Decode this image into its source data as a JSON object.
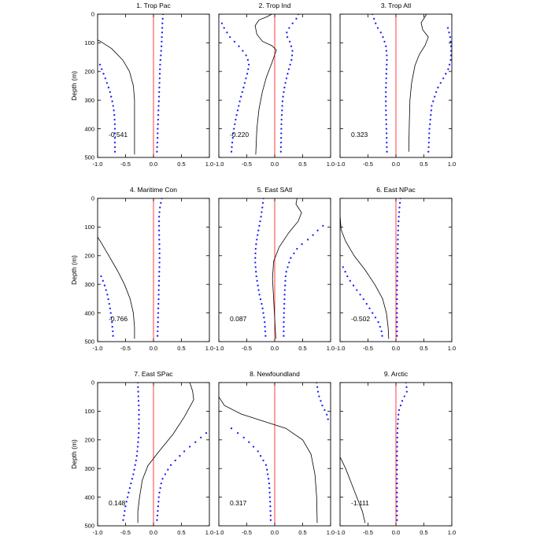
{
  "colors": {
    "profile": "#000000",
    "bound": "#1a1aff",
    "zero": "#ff2a2a",
    "frame": "#000000"
  },
  "ylabel": "Depth (m)",
  "chart_data": [
    {
      "type": "line",
      "title": "1. Trop Pac",
      "xlabel": "",
      "ylabel": "Depth (m)",
      "xlim": [
        -1,
        1
      ],
      "ylim": [
        500,
        0
      ],
      "xticks": [
        "-1.0",
        "-0.5",
        "0.0",
        "0.5",
        "1.0"
      ],
      "yticks": [
        "0",
        "100",
        "200",
        "300",
        "400",
        "500"
      ],
      "annotation": "-0.541",
      "series": [
        {
          "kind": "solid",
          "x": [
            -1.05,
            -0.95,
            -0.75,
            -0.55,
            -0.43,
            -0.36,
            -0.34,
            -0.34,
            -0.34,
            -0.34
          ],
          "y": [
            85,
            95,
            120,
            160,
            200,
            250,
            300,
            350,
            420,
            490
          ]
        },
        {
          "kind": "dotted",
          "x": [
            0.17,
            0.16,
            0.15,
            0.14,
            0.12,
            0.11,
            0.1,
            0.09,
            0.08,
            0.07,
            0.06
          ],
          "y": [
            0,
            30,
            80,
            120,
            170,
            220,
            280,
            330,
            380,
            440,
            490
          ]
        },
        {
          "kind": "dotted",
          "x": [
            -0.98,
            -0.92,
            -0.85,
            -0.78,
            -0.73,
            -0.7,
            -0.69,
            -0.69,
            -0.69
          ],
          "y": [
            165,
            195,
            230,
            270,
            310,
            350,
            390,
            430,
            490
          ]
        }
      ]
    },
    {
      "type": "line",
      "title": "2. Trop Ind",
      "xlabel": "",
      "ylabel": "",
      "xlim": [
        -1,
        1
      ],
      "ylim": [
        500,
        0
      ],
      "xticks": [
        "-1.0",
        "-0.5",
        "0.0",
        "0.5",
        "1.0"
      ],
      "yticks": [
        "0",
        "100",
        "200",
        "300",
        "400",
        "500"
      ],
      "annotation": "-0.220",
      "series": [
        {
          "kind": "solid",
          "x": [
            -0.05,
            -0.15,
            -0.28,
            -0.35,
            -0.32,
            -0.22,
            -0.05,
            0.03,
            -0.05,
            -0.15,
            -0.22,
            -0.28,
            -0.32,
            -0.34
          ],
          "y": [
            0,
            10,
            20,
            40,
            70,
            95,
            110,
            125,
            170,
            220,
            270,
            330,
            400,
            490
          ]
        },
        {
          "kind": "dotted",
          "x": [
            -0.95,
            -0.9,
            -0.8,
            -0.65,
            -0.52,
            -0.46,
            -0.48,
            -0.55,
            -0.62,
            -0.68,
            -0.74,
            -0.78
          ],
          "y": [
            30,
            50,
            80,
            110,
            140,
            170,
            200,
            250,
            300,
            350,
            410,
            490
          ]
        },
        {
          "kind": "dotted",
          "x": [
            0.42,
            0.38,
            0.28,
            0.2,
            0.28,
            0.32,
            0.3,
            0.24,
            0.18,
            0.14,
            0.12,
            0.11
          ],
          "y": [
            0,
            20,
            40,
            70,
            100,
            130,
            160,
            200,
            250,
            300,
            380,
            480
          ]
        }
      ]
    },
    {
      "type": "line",
      "title": "3. Trop Atl",
      "xlabel": "",
      "ylabel": "",
      "xlim": [
        -1,
        1
      ],
      "ylim": [
        500,
        0
      ],
      "xticks": [
        "-1.0",
        "-0.5",
        "0.0",
        "0.5",
        "1.0"
      ],
      "yticks": [
        "0",
        "100",
        "200",
        "300",
        "400",
        "500"
      ],
      "annotation": "0.323",
      "series": [
        {
          "kind": "solid",
          "x": [
            0.55,
            0.45,
            0.48,
            0.58,
            0.52,
            0.42,
            0.34,
            0.28,
            0.25,
            0.24,
            0.23
          ],
          "y": [
            0,
            30,
            55,
            80,
            110,
            140,
            180,
            240,
            300,
            380,
            480
          ]
        },
        {
          "kind": "dotted",
          "x": [
            -0.42,
            -0.35,
            -0.25,
            -0.18,
            -0.16,
            -0.17,
            -0.18,
            -0.18,
            -0.17,
            -0.16
          ],
          "y": [
            0,
            40,
            70,
            110,
            150,
            200,
            260,
            330,
            400,
            490
          ]
        },
        {
          "kind": "dotted",
          "x": [
            0.92,
            0.97,
            0.99,
            0.98,
            0.94,
            0.86,
            0.74,
            0.64,
            0.6,
            0.58
          ],
          "y": [
            40,
            80,
            120,
            160,
            190,
            220,
            260,
            320,
            400,
            490
          ]
        }
      ]
    },
    {
      "type": "line",
      "title": "4. Maritime Con",
      "xlabel": "",
      "ylabel": "Depth (m)",
      "xlim": [
        -1,
        1
      ],
      "ylim": [
        500,
        0
      ],
      "xticks": [
        "-1.0",
        "-0.5",
        "0.0",
        "0.5",
        "1.0"
      ],
      "yticks": [
        "0",
        "100",
        "200",
        "300",
        "400",
        "500"
      ],
      "annotation": "-0.766",
      "series": [
        {
          "kind": "solid",
          "x": [
            -1.05,
            -0.95,
            -0.8,
            -0.65,
            -0.52,
            -0.42,
            -0.36,
            -0.34,
            -0.34
          ],
          "y": [
            120,
            150,
            200,
            250,
            300,
            350,
            400,
            450,
            490
          ]
        },
        {
          "kind": "dotted",
          "x": [
            0.15,
            0.12,
            0.1,
            0.1,
            0.11,
            0.1,
            0.09,
            0.08,
            0.07
          ],
          "y": [
            0,
            25,
            60,
            120,
            200,
            280,
            360,
            430,
            490
          ]
        },
        {
          "kind": "dotted",
          "x": [
            -0.95,
            -0.88,
            -0.82,
            -0.78,
            -0.75,
            -0.73,
            -0.72
          ],
          "y": [
            265,
            300,
            340,
            380,
            420,
            460,
            490
          ]
        }
      ]
    },
    {
      "type": "line",
      "title": "5. East SAtl",
      "xlabel": "",
      "ylabel": "",
      "xlim": [
        -1,
        1
      ],
      "ylim": [
        500,
        0
      ],
      "xticks": [
        "-1.0",
        "-0.5",
        "0.0",
        "0.5",
        "1.0"
      ],
      "yticks": [
        "0",
        "100",
        "200",
        "300",
        "400",
        "500"
      ],
      "annotation": "0.087",
      "series": [
        {
          "kind": "solid",
          "x": [
            0.4,
            0.38,
            0.48,
            0.42,
            0.25,
            0.08,
            -0.02,
            -0.04,
            -0.02,
            0.0,
            0.02
          ],
          "y": [
            0,
            20,
            50,
            80,
            120,
            170,
            220,
            280,
            350,
            420,
            490
          ]
        },
        {
          "kind": "dotted",
          "x": [
            -0.2,
            -0.22,
            -0.25,
            -0.3,
            -0.34,
            -0.35,
            -0.33,
            -0.28,
            -0.22,
            -0.18,
            -0.16
          ],
          "y": [
            0,
            30,
            70,
            120,
            170,
            220,
            270,
            330,
            380,
            430,
            490
          ]
        },
        {
          "kind": "dotted",
          "x": [
            0.9,
            0.78,
            0.62,
            0.42,
            0.28,
            0.2,
            0.18,
            0.17,
            0.16,
            0.16
          ],
          "y": [
            90,
            110,
            140,
            170,
            210,
            260,
            320,
            380,
            440,
            490
          ]
        }
      ]
    },
    {
      "type": "line",
      "title": "6. East NPac",
      "xlabel": "",
      "ylabel": "",
      "xlim": [
        -1,
        1
      ],
      "ylim": [
        500,
        0
      ],
      "xticks": [
        "-1.0",
        "-0.5",
        "0.0",
        "0.5",
        "1.0"
      ],
      "yticks": [
        "0",
        "100",
        "200",
        "300",
        "400",
        "500"
      ],
      "annotation": "-0.502",
      "series": [
        {
          "kind": "solid",
          "x": [
            -1.0,
            -1.0,
            -0.98,
            -0.9,
            -0.75,
            -0.55,
            -0.38,
            -0.24,
            -0.17,
            -0.14,
            -0.13
          ],
          "y": [
            10,
            60,
            110,
            150,
            200,
            250,
            300,
            350,
            400,
            450,
            490
          ]
        },
        {
          "kind": "dotted",
          "x": [
            0.08,
            0.06,
            0.04,
            0.03,
            0.02,
            0.02
          ],
          "y": [
            0,
            40,
            100,
            200,
            320,
            490
          ]
        },
        {
          "kind": "dotted",
          "x": [
            -0.97,
            -0.85,
            -0.7,
            -0.55,
            -0.42,
            -0.32,
            -0.26,
            -0.24
          ],
          "y": [
            230,
            280,
            320,
            360,
            400,
            430,
            460,
            490
          ]
        }
      ]
    },
    {
      "type": "line",
      "title": "7. East SPac",
      "xlabel": "",
      "ylabel": "Depth (m)",
      "xlim": [
        -1,
        1
      ],
      "ylim": [
        500,
        0
      ],
      "xticks": [
        "-1.0",
        "-0.5",
        "0.0",
        "0.5",
        "1.0"
      ],
      "yticks": [
        "0",
        "100",
        "200",
        "300",
        "400",
        "500"
      ],
      "annotation": "0.148",
      "series": [
        {
          "kind": "solid",
          "x": [
            0.65,
            0.7,
            0.72,
            0.55,
            0.35,
            0.1,
            -0.1,
            -0.2,
            -0.25,
            -0.28,
            -0.28
          ],
          "y": [
            0,
            30,
            60,
            120,
            180,
            240,
            290,
            340,
            400,
            450,
            490
          ]
        },
        {
          "kind": "dotted",
          "x": [
            -0.28,
            -0.27,
            -0.26,
            -0.26,
            -0.27,
            -0.3,
            -0.36,
            -0.44,
            -0.5,
            -0.55
          ],
          "y": [
            0,
            50,
            100,
            150,
            200,
            260,
            320,
            380,
            430,
            490
          ]
        },
        {
          "kind": "dotted",
          "x": [
            0.98,
            0.8,
            0.55,
            0.3,
            0.15,
            0.1,
            0.08,
            0.06
          ],
          "y": [
            170,
            200,
            240,
            290,
            340,
            390,
            440,
            490
          ]
        }
      ]
    },
    {
      "type": "line",
      "title": "8. Newfoundland",
      "xlabel": "",
      "ylabel": "",
      "xlim": [
        -1,
        1
      ],
      "ylim": [
        500,
        0
      ],
      "xticks": [
        "-1.0",
        "-0.5",
        "0.0",
        "0.5",
        "1.0"
      ],
      "yticks": [
        "0",
        "100",
        "200",
        "300",
        "400",
        "500"
      ],
      "annotation": "0.317",
      "series": [
        {
          "kind": "solid",
          "x": [
            -1.0,
            -0.9,
            -0.6,
            -0.2,
            0.2,
            0.5,
            0.65,
            0.72,
            0.75,
            0.76
          ],
          "y": [
            50,
            80,
            110,
            135,
            160,
            200,
            250,
            320,
            400,
            490
          ]
        },
        {
          "kind": "dotted",
          "x": [
            0.75,
            0.78,
            0.85,
            0.93,
            0.97
          ],
          "y": [
            0,
            40,
            80,
            110,
            140
          ]
        },
        {
          "kind": "dotted",
          "x": [
            -0.85,
            -0.7,
            -0.5,
            -0.3,
            -0.15,
            -0.1,
            -0.08,
            -0.07
          ],
          "y": [
            150,
            170,
            200,
            240,
            290,
            350,
            420,
            490
          ]
        }
      ]
    },
    {
      "type": "line",
      "title": "9. Arctic",
      "xlabel": "",
      "ylabel": "",
      "xlim": [
        -1,
        1
      ],
      "ylim": [
        500,
        0
      ],
      "xticks": [
        "-1.0",
        "-0.5",
        "0.0",
        "0.5",
        "1.0"
      ],
      "yticks": [
        "0",
        "100",
        "200",
        "300",
        "400",
        "500"
      ],
      "annotation": "-1.111",
      "series": [
        {
          "kind": "solid",
          "x": [
            -1.0,
            -0.9,
            -0.8,
            -0.7,
            -0.6,
            -0.55
          ],
          "y": [
            260,
            300,
            350,
            400,
            450,
            490
          ]
        },
        {
          "kind": "dotted",
          "x": [
            0.18,
            0.2,
            0.12,
            0.05,
            0.03,
            0.02,
            0.02,
            0.02
          ],
          "y": [
            0,
            30,
            60,
            100,
            150,
            250,
            380,
            490
          ]
        }
      ]
    }
  ]
}
